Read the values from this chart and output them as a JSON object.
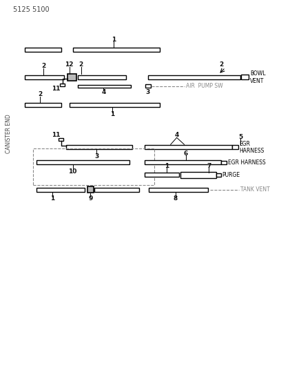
{
  "title_code": "5125 5100",
  "bg": "#ffffff",
  "lc": "#000000",
  "dc": "#888888",
  "canister_end": "CANISTER END",
  "bowl_vent": "BOWL\nVENT",
  "air_pump_sw": "AIR  PUMP SW",
  "egr_harness1": "EGR\nHARNESS",
  "egr_harness2": "EGR HARNESS",
  "purge": "PURGE",
  "tank_vent": "TANK VENT"
}
